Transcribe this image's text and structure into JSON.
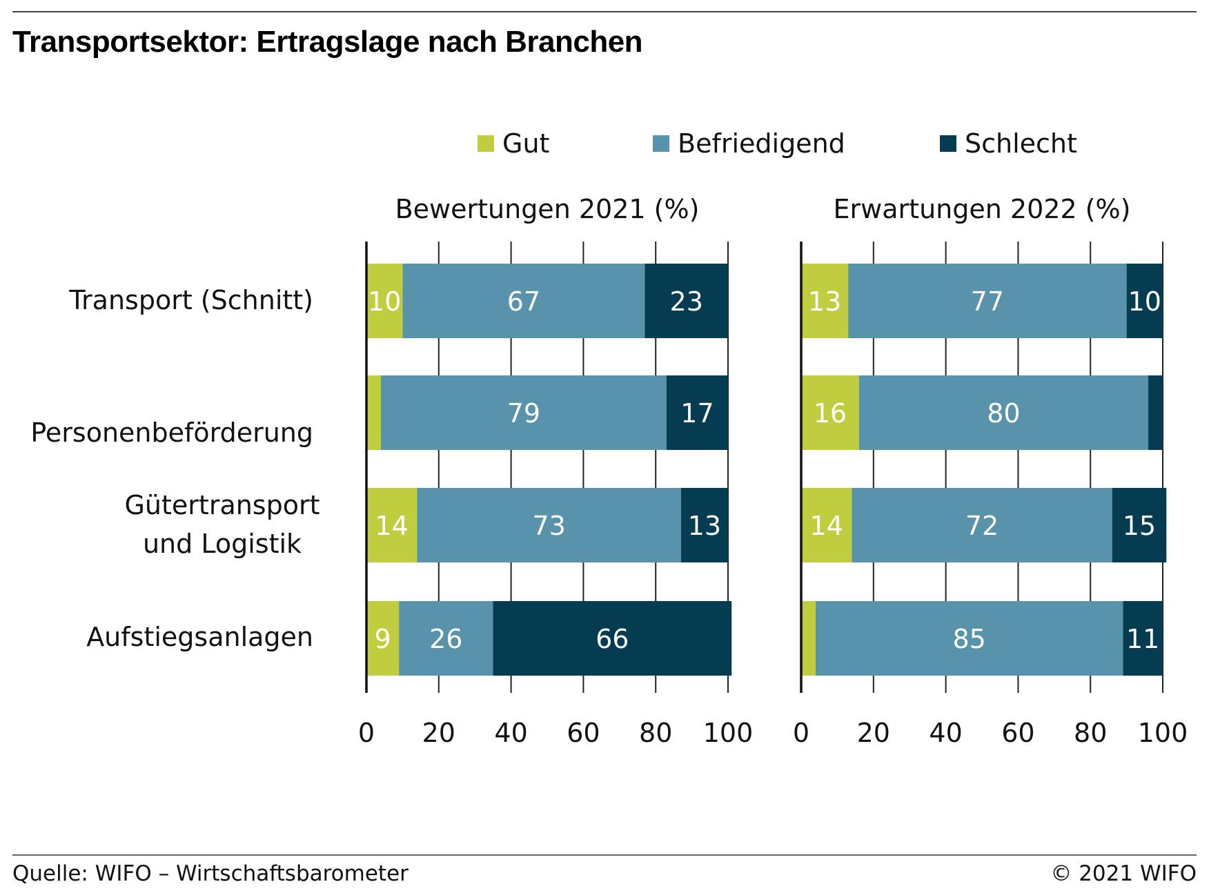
{
  "title": "Transportsektor: Ertragslage nach Branchen",
  "footer": {
    "source": "Quelle: WIFO – Wirtschaftsbarometer",
    "copyright": "© 2021 WIFO"
  },
  "colors": {
    "gut": "#bfcd3e",
    "befriedigend": "#5893ab",
    "schlecht": "#053c51",
    "grid": "#222222"
  },
  "chart_data": {
    "type": "bar",
    "orientation": "horizontal-stacked",
    "categories": [
      "Transport (Schnitt)",
      "Personenbeförderung",
      "Gütertransport und Logistik",
      "Aufstiegsanlagen"
    ],
    "legend": [
      "Gut",
      "Befriedigend",
      "Schlecht"
    ],
    "legend_position": "top",
    "xlim": [
      0,
      100
    ],
    "ticks": [
      0,
      20,
      40,
      60,
      80,
      100
    ],
    "grid": true,
    "panels": [
      {
        "title": "Bewertungen 2021 (%)",
        "series": [
          {
            "name": "Gut",
            "values": [
              10,
              4,
              14,
              9
            ],
            "labels": [
              "10",
              "",
              "14",
              "9"
            ]
          },
          {
            "name": "Befriedigend",
            "values": [
              67,
              79,
              73,
              26
            ],
            "labels": [
              "67",
              "79",
              "73",
              "26"
            ]
          },
          {
            "name": "Schlecht",
            "values": [
              23,
              17,
              13,
              66
            ],
            "labels": [
              "23",
              "17",
              "13",
              "66"
            ]
          }
        ]
      },
      {
        "title": "Erwartungen 2022 (%)",
        "series": [
          {
            "name": "Gut",
            "values": [
              13,
              16,
              14,
              4
            ],
            "labels": [
              "13",
              "16",
              "14",
              ""
            ]
          },
          {
            "name": "Befriedigend",
            "values": [
              77,
              80,
              72,
              85
            ],
            "labels": [
              "77",
              "80",
              "72",
              "85"
            ]
          },
          {
            "name": "Schlecht",
            "values": [
              10,
              4,
              15,
              11
            ],
            "labels": [
              "10",
              "",
              "15",
              "11"
            ]
          }
        ]
      }
    ]
  }
}
